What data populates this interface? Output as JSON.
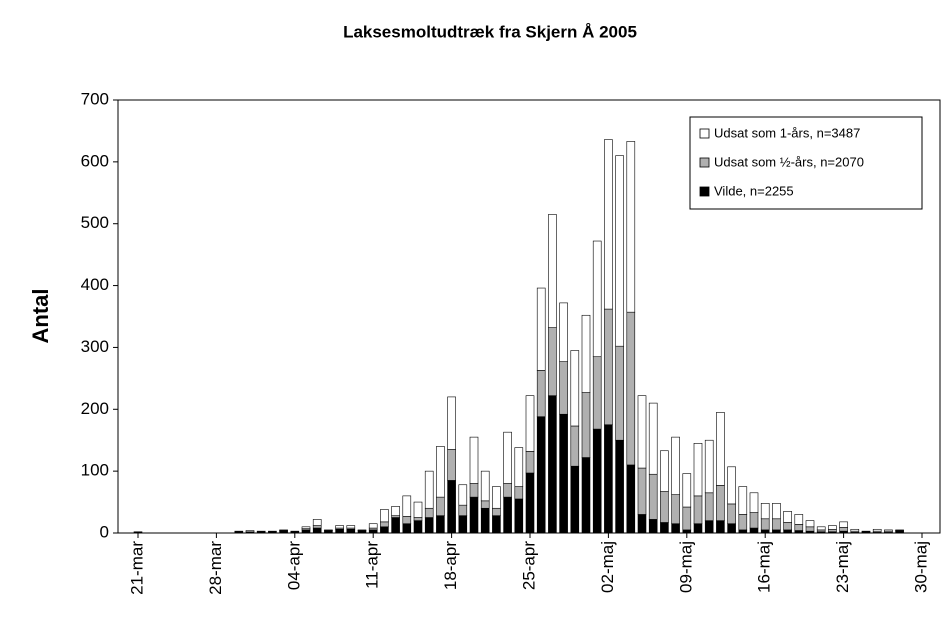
{
  "chart_data": {
    "type": "stacked-bar",
    "title": "Laksesmoltudtræk fra Skjern Å 2005",
    "y_label": "Antal",
    "categories": [
      "21-mar",
      null,
      null,
      null,
      null,
      null,
      null,
      "28-mar",
      null,
      null,
      null,
      null,
      null,
      null,
      "04-apr",
      null,
      null,
      null,
      null,
      null,
      null,
      "11-apr",
      null,
      null,
      null,
      null,
      null,
      null,
      "18-apr",
      null,
      null,
      null,
      null,
      null,
      null,
      "25-apr",
      null,
      null,
      null,
      null,
      null,
      null,
      "02-maj",
      null,
      null,
      null,
      null,
      null,
      null,
      "09-maj",
      null,
      null,
      null,
      null,
      null,
      null,
      "16-maj",
      null,
      null,
      null,
      null,
      null,
      null,
      "23-maj",
      null,
      null,
      null,
      null,
      null,
      null,
      "30-maj"
    ],
    "series": [
      {
        "name": "Udsat som 1-års, n=3487",
        "color": "#ffffff",
        "values": [
          0,
          0,
          0,
          0,
          0,
          0,
          0,
          0,
          0,
          1,
          2,
          1,
          1,
          1,
          1,
          3,
          10,
          1,
          4,
          4,
          1,
          7,
          20,
          15,
          33,
          25,
          60,
          82,
          85,
          33,
          75,
          48,
          35,
          83,
          63,
          90,
          133,
          183,
          95,
          122,
          125,
          187,
          274,
          308,
          276,
          117,
          115,
          66,
          93,
          54,
          85,
          85,
          118,
          60,
          45,
          32,
          25,
          25,
          18,
          16,
          10,
          5,
          6,
          9,
          3,
          1,
          3,
          2,
          1,
          0,
          0
        ]
      },
      {
        "name": "Udsat som ½-års, n=2070",
        "color": "#b0b0b0",
        "values": [
          0,
          0,
          0,
          0,
          0,
          0,
          0,
          0,
          0,
          0,
          0,
          0,
          0,
          1,
          0,
          2,
          4,
          0,
          2,
          2,
          0,
          3,
          8,
          3,
          12,
          5,
          15,
          30,
          50,
          17,
          22,
          12,
          12,
          22,
          20,
          35,
          75,
          110,
          85,
          65,
          105,
          117,
          187,
          152,
          247,
          75,
          73,
          50,
          47,
          37,
          45,
          45,
          57,
          32,
          25,
          25,
          18,
          18,
          12,
          10,
          7,
          3,
          4,
          6,
          2,
          1,
          2,
          2,
          1,
          0,
          0
        ]
      },
      {
        "name": "Vilde, n=2255",
        "color": "#000000",
        "values": [
          2,
          0,
          0,
          0,
          0,
          0,
          0,
          0,
          0,
          2,
          2,
          2,
          2,
          3,
          2,
          5,
          8,
          4,
          6,
          6,
          4,
          5,
          10,
          25,
          15,
          20,
          25,
          28,
          85,
          28,
          58,
          40,
          28,
          58,
          55,
          97,
          188,
          222,
          192,
          108,
          122,
          168,
          175,
          150,
          110,
          30,
          22,
          17,
          15,
          5,
          15,
          20,
          20,
          15,
          5,
          8,
          5,
          5,
          5,
          4,
          3,
          2,
          2,
          3,
          1,
          1,
          1,
          1,
          3,
          0,
          0
        ]
      }
    ],
    "ylim": [
      0,
      700
    ],
    "yticks": [
      0,
      100,
      200,
      300,
      400,
      500,
      600,
      700
    ],
    "legend": "top-right"
  }
}
